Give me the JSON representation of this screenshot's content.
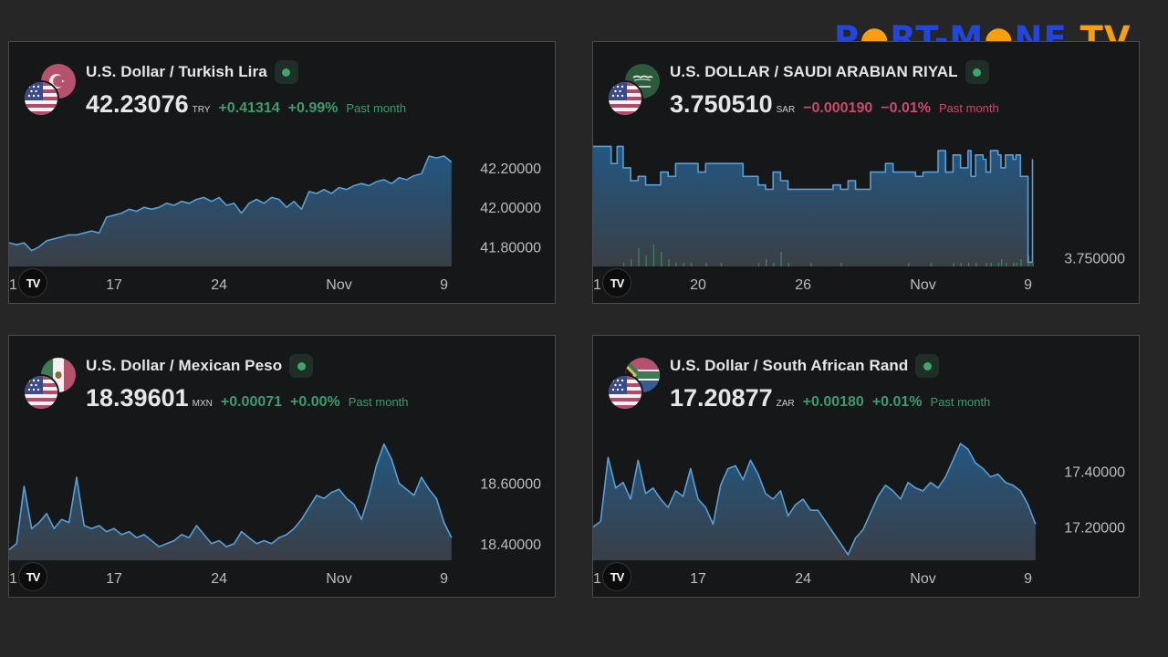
{
  "brand": {
    "part1": "P",
    "part2": "RT-M",
    "part3": "NE",
    "part4": " TV",
    "o_symbol": "●"
  },
  "widgets": [
    {
      "title": "U.S. Dollar / Turkish Lira",
      "price": "42.23076",
      "currency": "TRY",
      "change": "+0.41314",
      "change_pct": "+0.99%",
      "period": "Past month",
      "direction": "up",
      "tv_logo": "TV",
      "flag_base": "us-flag-icon",
      "flag_quote": "turkey-flag-icon"
    },
    {
      "title": "U.S. DOLLAR / SAUDI ARABIAN RIYAL",
      "price": "3.750510",
      "currency": "SAR",
      "change": "−0.000190",
      "change_pct": "−0.01%",
      "period": "Past month",
      "direction": "down",
      "tv_logo": "TV",
      "flag_base": "us-flag-icon",
      "flag_quote": "saudi-flag-icon"
    },
    {
      "title": "U.S. Dollar / Mexican Peso",
      "price": "18.39601",
      "currency": "MXN",
      "change": "+0.00071",
      "change_pct": "+0.00%",
      "period": "Past month",
      "direction": "up",
      "tv_logo": "TV",
      "flag_base": "us-flag-icon",
      "flag_quote": "mexico-flag-icon"
    },
    {
      "title": "U.S. Dollar / South African Rand",
      "price": "17.20877",
      "currency": "ZAR",
      "change": "+0.00180",
      "change_pct": "+0.01%",
      "period": "Past month",
      "direction": "up",
      "tv_logo": "TV",
      "flag_base": "us-flag-icon",
      "flag_quote": "south-africa-flag-icon"
    }
  ],
  "colors": {
    "line": "#5a9fd4",
    "up": "#3e9a6f",
    "down": "#c94a6d",
    "volume": "#3e8f5e"
  },
  "chart_data": [
    {
      "type": "area",
      "title": "U.S. Dollar / Turkish Lira",
      "ylim": [
        41.7,
        42.32
      ],
      "yticks": [
        "42.20000",
        "42.00000",
        "41.80000"
      ],
      "ytick_values": [
        42.2,
        42.0,
        41.8
      ],
      "xlim": [
        0,
        30
      ],
      "xticks": [
        {
          "label": "1",
          "x": 0
        },
        {
          "label": "17",
          "x": 7
        },
        {
          "label": "24",
          "x": 14
        },
        {
          "label": "Nov",
          "x": 22
        },
        {
          "label": "9",
          "x": 29
        }
      ],
      "x": [
        0,
        0.5,
        1,
        1.5,
        2,
        2.5,
        3,
        3.5,
        4,
        4.5,
        5,
        5.5,
        6,
        6.5,
        7,
        7.5,
        8,
        8.5,
        9,
        9.5,
        10,
        10.5,
        11,
        11.5,
        12,
        12.5,
        13,
        13.5,
        14,
        14.5,
        15,
        15.5,
        16,
        16.5,
        17,
        17.5,
        18,
        18.5,
        19,
        19.5,
        20,
        20.5,
        21,
        21.5,
        22,
        22.5,
        23,
        23.5,
        24,
        24.5,
        25,
        25.5,
        26,
        26.5,
        27,
        27.5,
        28,
        28.5,
        29,
        29.5
      ],
      "values": [
        41.82,
        41.81,
        41.82,
        41.78,
        41.8,
        41.83,
        41.84,
        41.85,
        41.86,
        41.86,
        41.87,
        41.88,
        41.87,
        41.95,
        41.96,
        41.97,
        41.99,
        41.98,
        42.0,
        41.99,
        42.0,
        42.02,
        42.01,
        42.03,
        42.02,
        42.04,
        42.05,
        42.03,
        42.05,
        42.01,
        42.02,
        41.97,
        42.02,
        42.04,
        42.02,
        42.05,
        42.04,
        42.0,
        42.03,
        41.99,
        42.08,
        42.07,
        42.09,
        42.07,
        42.1,
        42.09,
        42.11,
        42.12,
        42.11,
        42.13,
        42.14,
        42.12,
        42.15,
        42.14,
        42.16,
        42.17,
        42.26,
        42.25,
        42.26,
        42.23
      ]
    },
    {
      "type": "area",
      "title": "U.S. DOLLAR / SAUDI ARABIAN RIYAL",
      "ylim": [
        3.74996,
        3.75053
      ],
      "yticks": [
        "3.750000"
      ],
      "ytick_values": [
        3.75
      ],
      "xlim": [
        0,
        30
      ],
      "xticks": [
        {
          "label": "1",
          "x": 0
        },
        {
          "label": "20",
          "x": 7
        },
        {
          "label": "26",
          "x": 14
        },
        {
          "label": "Nov",
          "x": 22
        },
        {
          "label": "9",
          "x": 29
        }
      ],
      "x": [
        0,
        0.8,
        1.2,
        1.6,
        2,
        2.5,
        3,
        3.5,
        4,
        4.5,
        5,
        5.5,
        6,
        6.5,
        7,
        7.5,
        8,
        8.5,
        9,
        9.5,
        10,
        10.5,
        11,
        11.5,
        12,
        12.5,
        13,
        13.5,
        14,
        14.5,
        15,
        15.5,
        16,
        16.5,
        17,
        17.5,
        18,
        18.5,
        19,
        19.5,
        20,
        20.5,
        21,
        21.5,
        22,
        22.5,
        23,
        23.5,
        24,
        24.5,
        25,
        25.2,
        25.5,
        26,
        26.2,
        26.5,
        27,
        27.2,
        27.5,
        28,
        28.2,
        28.5,
        29,
        29.3
      ],
      "values": [
        3.75052,
        3.75052,
        3.75044,
        3.75052,
        3.75042,
        3.75036,
        3.75038,
        3.75034,
        3.75034,
        3.7504,
        3.75038,
        3.75044,
        3.75044,
        3.75044,
        3.7504,
        3.75044,
        3.75044,
        3.75044,
        3.75044,
        3.75044,
        3.75038,
        3.75038,
        3.75034,
        3.75032,
        3.7504,
        3.75036,
        3.75032,
        3.75032,
        3.75032,
        3.75032,
        3.75032,
        3.75032,
        3.75034,
        3.75032,
        3.75036,
        3.75032,
        3.75032,
        3.7504,
        3.7504,
        3.75044,
        3.7504,
        3.7504,
        3.7504,
        3.75038,
        3.7504,
        3.7504,
        3.7505,
        3.7504,
        3.75048,
        3.75042,
        3.7505,
        3.75038,
        3.75048,
        3.75046,
        3.7504,
        3.7505,
        3.75048,
        3.75042,
        3.75048,
        3.75046,
        3.75048,
        3.75038,
        3.74998,
        3.75046
      ],
      "volume": [
        0,
        0,
        0,
        0,
        1,
        2,
        5,
        3,
        6,
        4,
        2,
        1,
        1,
        1,
        0,
        1,
        0,
        1,
        0,
        0,
        0,
        0,
        1,
        2,
        1,
        4,
        1,
        0,
        0,
        1,
        0,
        0,
        0,
        1,
        0,
        0,
        0,
        0,
        0,
        0,
        0,
        0,
        1,
        0,
        0,
        1,
        0,
        0,
        1,
        1,
        1,
        0,
        1,
        0,
        1,
        1,
        1,
        2,
        1,
        1,
        1,
        2,
        3,
        1
      ]
    },
    {
      "type": "area",
      "title": "U.S. Dollar / Mexican Peso",
      "ylim": [
        18.345,
        18.75
      ],
      "yticks": [
        "18.60000",
        "18.40000"
      ],
      "ytick_values": [
        18.6,
        18.4
      ],
      "xlim": [
        0,
        30
      ],
      "xticks": [
        {
          "label": "1",
          "x": 0
        },
        {
          "label": "17",
          "x": 7
        },
        {
          "label": "24",
          "x": 14
        },
        {
          "label": "Nov",
          "x": 22
        },
        {
          "label": "9",
          "x": 29
        }
      ],
      "x": [
        0,
        0.5,
        1,
        1.5,
        2,
        2.5,
        3,
        3.5,
        4,
        4.5,
        5,
        5.5,
        6,
        6.5,
        7,
        7.5,
        8,
        8.5,
        9,
        9.5,
        10,
        10.5,
        11,
        11.5,
        12,
        12.5,
        13,
        13.5,
        14,
        14.5,
        15,
        15.5,
        16,
        16.5,
        17,
        17.5,
        18,
        18.5,
        19,
        19.5,
        20,
        20.5,
        21,
        21.5,
        22,
        22.5,
        23,
        23.5,
        24,
        24.5,
        25,
        25.5,
        26,
        26.5,
        27,
        27.5,
        28,
        28.5,
        29,
        29.5
      ],
      "values": [
        18.38,
        18.4,
        18.59,
        18.45,
        18.47,
        18.5,
        18.45,
        18.48,
        18.47,
        18.62,
        18.46,
        18.45,
        18.46,
        18.44,
        18.45,
        18.43,
        18.44,
        18.42,
        18.43,
        18.41,
        18.39,
        18.4,
        18.41,
        18.43,
        18.42,
        18.46,
        18.43,
        18.4,
        18.41,
        18.39,
        18.4,
        18.44,
        18.42,
        18.4,
        18.41,
        18.4,
        18.42,
        18.43,
        18.45,
        18.48,
        18.52,
        18.56,
        18.55,
        18.57,
        18.58,
        18.55,
        18.53,
        18.48,
        18.56,
        18.66,
        18.73,
        18.68,
        18.6,
        18.58,
        18.56,
        18.62,
        18.58,
        18.55,
        18.47,
        18.42
      ]
    },
    {
      "type": "area",
      "title": "U.S. Dollar / South African Rand",
      "ylim": [
        17.08,
        17.52
      ],
      "yticks": [
        "17.40000",
        "17.20000"
      ],
      "ytick_values": [
        17.4,
        17.2
      ],
      "xlim": [
        0,
        30
      ],
      "xticks": [
        {
          "label": "1",
          "x": 0
        },
        {
          "label": "17",
          "x": 7
        },
        {
          "label": "24",
          "x": 14
        },
        {
          "label": "Nov",
          "x": 22
        },
        {
          "label": "9",
          "x": 29
        }
      ],
      "x": [
        0,
        0.5,
        1,
        1.5,
        2,
        2.5,
        3,
        3.5,
        4,
        4.5,
        5,
        5.5,
        6,
        6.5,
        7,
        7.5,
        8,
        8.5,
        9,
        9.5,
        10,
        10.5,
        11,
        11.5,
        12,
        12.5,
        13,
        13.5,
        14,
        14.5,
        15,
        15.5,
        16,
        16.5,
        17,
        17.5,
        18,
        18.5,
        19,
        19.5,
        20,
        20.5,
        21,
        21.5,
        22,
        22.5,
        23,
        23.5,
        24,
        24.5,
        25,
        25.5,
        26,
        26.5,
        27,
        27.5,
        28,
        28.5,
        29,
        29.5
      ],
      "values": [
        17.2,
        17.22,
        17.45,
        17.34,
        17.36,
        17.3,
        17.44,
        17.32,
        17.34,
        17.3,
        17.27,
        17.33,
        17.31,
        17.41,
        17.3,
        17.27,
        17.21,
        17.35,
        17.41,
        17.42,
        17.37,
        17.44,
        17.39,
        17.32,
        17.3,
        17.33,
        17.24,
        17.28,
        17.3,
        17.26,
        17.26,
        17.22,
        17.18,
        17.14,
        17.1,
        17.16,
        17.19,
        17.25,
        17.31,
        17.35,
        17.33,
        17.3,
        17.36,
        17.34,
        17.33,
        17.36,
        17.34,
        17.38,
        17.44,
        17.5,
        17.48,
        17.43,
        17.41,
        17.38,
        17.39,
        17.36,
        17.35,
        17.33,
        17.28,
        17.21
      ]
    }
  ]
}
